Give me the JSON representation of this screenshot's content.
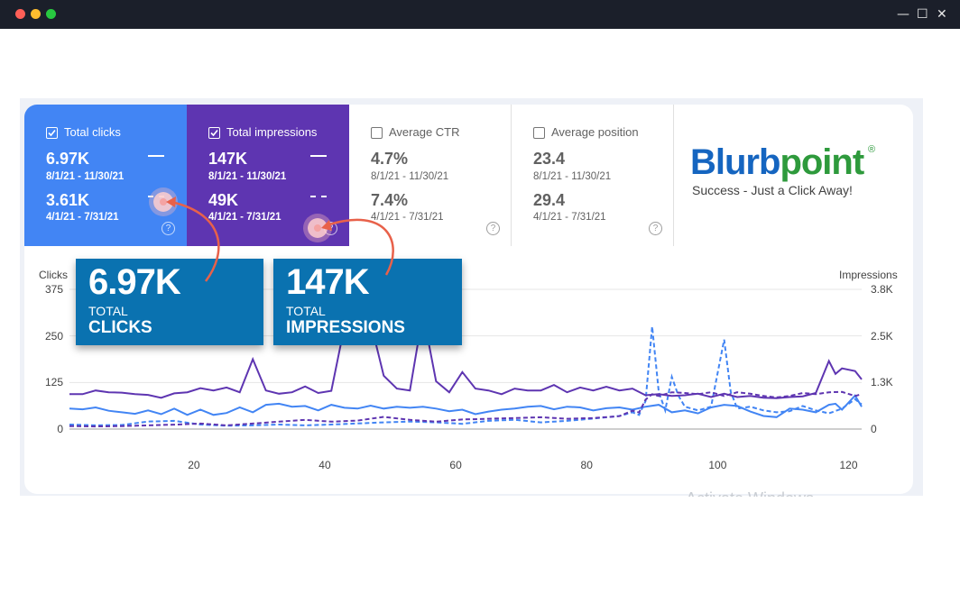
{
  "window": {
    "controls": {
      "minimize": "—",
      "maximize": "☐",
      "close": "✕"
    },
    "dot_colors": [
      "#ff5f57",
      "#febc2e",
      "#28c840"
    ]
  },
  "metrics": [
    {
      "label": "Total clicks",
      "checked": true,
      "value1": "6.97K",
      "date1": "8/1/21 - 11/30/21",
      "value2": "3.61K",
      "date2": "4/1/21 - 7/31/21",
      "help": "?"
    },
    {
      "label": "Total impressions",
      "checked": true,
      "value1": "147K",
      "date1": "8/1/21 - 11/30/21",
      "value2": "49K",
      "date2": "4/1/21 - 7/31/21",
      "help": "?"
    },
    {
      "label": "Average CTR",
      "checked": false,
      "value1": "4.7%",
      "date1": "8/1/21 - 11/30/21",
      "value2": "7.4%",
      "date2": "4/1/21 - 7/31/21",
      "help": "?"
    },
    {
      "label": "Average position",
      "checked": false,
      "value1": "23.4",
      "date1": "8/1/21 - 11/30/21",
      "value2": "29.4",
      "date2": "4/1/21 - 7/31/21",
      "help": "?"
    }
  ],
  "logo": {
    "part1": "Blurb",
    "part2": "point",
    "reg": "®",
    "tagline": "Success - Just a Click Away!"
  },
  "callouts": [
    {
      "big": "6.97K",
      "line1": "TOTAL",
      "line2": "CLICKS"
    },
    {
      "big": "147K",
      "line1": "TOTAL",
      "line2": "IMPRESSIONS"
    }
  ],
  "watermark": "Activate Windows",
  "colors": {
    "clicks": "#4285f4",
    "impressions": "#5e35b1",
    "callout": "#0a72b0",
    "arrow": "#e8614a"
  },
  "chart_data": {
    "type": "line",
    "left_axis_label": "Clicks",
    "right_axis_label": "Impressions",
    "y_left_ticks": [
      "375",
      "250",
      "125",
      "0"
    ],
    "y_left_range": [
      0,
      375
    ],
    "y_right_ticks": [
      "3.8K",
      "2.5K",
      "1.3K",
      "0"
    ],
    "y_right_range": [
      0,
      3800
    ],
    "x_ticks": [
      20,
      40,
      60,
      80,
      100,
      120
    ],
    "x_range": [
      1,
      122
    ],
    "grid": true,
    "series": [
      {
        "axis": "left",
        "style": "solid",
        "color": "#4285f4",
        "period": "8/1/21 - 11/30/21",
        "points": [
          [
            1,
            55
          ],
          [
            3,
            53
          ],
          [
            5,
            58
          ],
          [
            7,
            49
          ],
          [
            9,
            45
          ],
          [
            11,
            41
          ],
          [
            13,
            50
          ],
          [
            15,
            40
          ],
          [
            17,
            55
          ],
          [
            19,
            38
          ],
          [
            21,
            52
          ],
          [
            23,
            38
          ],
          [
            25,
            43
          ],
          [
            27,
            58
          ],
          [
            29,
            45
          ],
          [
            31,
            65
          ],
          [
            33,
            68
          ],
          [
            35,
            60
          ],
          [
            37,
            62
          ],
          [
            39,
            50
          ],
          [
            41,
            65
          ],
          [
            43,
            57
          ],
          [
            45,
            55
          ],
          [
            47,
            63
          ],
          [
            49,
            55
          ],
          [
            51,
            60
          ],
          [
            53,
            57
          ],
          [
            55,
            60
          ],
          [
            57,
            55
          ],
          [
            59,
            48
          ],
          [
            61,
            52
          ],
          [
            63,
            40
          ],
          [
            65,
            47
          ],
          [
            67,
            52
          ],
          [
            69,
            55
          ],
          [
            71,
            60
          ],
          [
            73,
            62
          ],
          [
            75,
            53
          ],
          [
            77,
            60
          ],
          [
            79,
            58
          ],
          [
            81,
            50
          ],
          [
            83,
            56
          ],
          [
            85,
            58
          ],
          [
            87,
            52
          ],
          [
            89,
            60
          ],
          [
            91,
            65
          ],
          [
            93,
            45
          ],
          [
            95,
            50
          ],
          [
            97,
            42
          ],
          [
            99,
            58
          ],
          [
            101,
            65
          ],
          [
            103,
            62
          ],
          [
            105,
            47
          ],
          [
            107,
            35
          ],
          [
            109,
            32
          ],
          [
            111,
            55
          ],
          [
            113,
            52
          ],
          [
            115,
            45
          ],
          [
            117,
            65
          ],
          [
            118,
            68
          ],
          [
            119,
            52
          ],
          [
            121,
            90
          ],
          [
            122,
            60
          ]
        ]
      },
      {
        "axis": "left",
        "style": "dashed",
        "color": "#4285f4",
        "period": "4/1/21 - 7/31/21",
        "points": [
          [
            1,
            12
          ],
          [
            5,
            10
          ],
          [
            9,
            11
          ],
          [
            13,
            20
          ],
          [
            17,
            22
          ],
          [
            21,
            12
          ],
          [
            25,
            9
          ],
          [
            29,
            10
          ],
          [
            33,
            12
          ],
          [
            37,
            10
          ],
          [
            41,
            12
          ],
          [
            45,
            15
          ],
          [
            49,
            18
          ],
          [
            53,
            20
          ],
          [
            57,
            18
          ],
          [
            61,
            14
          ],
          [
            65,
            22
          ],
          [
            69,
            25
          ],
          [
            73,
            18
          ],
          [
            77,
            22
          ],
          [
            81,
            28
          ],
          [
            85,
            35
          ],
          [
            87,
            45
          ],
          [
            88,
            38
          ],
          [
            89,
            75
          ],
          [
            90,
            275
          ],
          [
            91,
            100
          ],
          [
            92,
            50
          ],
          [
            93,
            140
          ],
          [
            94,
            90
          ],
          [
            95,
            60
          ],
          [
            97,
            50
          ],
          [
            99,
            60
          ],
          [
            101,
            240
          ],
          [
            102,
            100
          ],
          [
            103,
            55
          ],
          [
            105,
            60
          ],
          [
            107,
            50
          ],
          [
            109,
            45
          ],
          [
            111,
            48
          ],
          [
            113,
            62
          ],
          [
            115,
            50
          ],
          [
            117,
            42
          ],
          [
            119,
            55
          ],
          [
            121,
            80
          ],
          [
            122,
            66
          ]
        ]
      },
      {
        "axis": "right",
        "style": "solid",
        "color": "#5e35b1",
        "period": "8/1/21 - 11/30/21",
        "points": [
          [
            1,
            950
          ],
          [
            3,
            950
          ],
          [
            5,
            1050
          ],
          [
            7,
            1000
          ],
          [
            9,
            990
          ],
          [
            11,
            950
          ],
          [
            13,
            930
          ],
          [
            15,
            850
          ],
          [
            17,
            970
          ],
          [
            19,
            1000
          ],
          [
            21,
            1110
          ],
          [
            23,
            1050
          ],
          [
            25,
            1130
          ],
          [
            27,
            1000
          ],
          [
            29,
            1900
          ],
          [
            31,
            1050
          ],
          [
            33,
            960
          ],
          [
            35,
            1000
          ],
          [
            37,
            1160
          ],
          [
            39,
            980
          ],
          [
            41,
            1040
          ],
          [
            43,
            2800
          ],
          [
            45,
            3850
          ],
          [
            47,
            2900
          ],
          [
            49,
            1450
          ],
          [
            51,
            1100
          ],
          [
            53,
            1050
          ],
          [
            55,
            3150
          ],
          [
            57,
            1300
          ],
          [
            59,
            1000
          ],
          [
            61,
            1550
          ],
          [
            63,
            1100
          ],
          [
            65,
            1050
          ],
          [
            67,
            950
          ],
          [
            69,
            1100
          ],
          [
            71,
            1050
          ],
          [
            73,
            1050
          ],
          [
            75,
            1200
          ],
          [
            77,
            1000
          ],
          [
            79,
            1130
          ],
          [
            81,
            1050
          ],
          [
            83,
            1150
          ],
          [
            85,
            1050
          ],
          [
            87,
            1100
          ],
          [
            89,
            920
          ],
          [
            91,
            950
          ],
          [
            93,
            900
          ],
          [
            95,
            920
          ],
          [
            97,
            960
          ],
          [
            99,
            870
          ],
          [
            101,
            960
          ],
          [
            103,
            870
          ],
          [
            105,
            900
          ],
          [
            107,
            850
          ],
          [
            109,
            840
          ],
          [
            111,
            870
          ],
          [
            113,
            890
          ],
          [
            115,
            980
          ],
          [
            117,
            1850
          ],
          [
            118,
            1500
          ],
          [
            119,
            1650
          ],
          [
            121,
            1580
          ],
          [
            122,
            1350
          ]
        ]
      },
      {
        "axis": "right",
        "style": "dashed",
        "color": "#5e35b1",
        "period": "4/1/21 - 7/31/21",
        "points": [
          [
            1,
            80
          ],
          [
            5,
            70
          ],
          [
            9,
            80
          ],
          [
            13,
            100
          ],
          [
            17,
            120
          ],
          [
            21,
            150
          ],
          [
            25,
            100
          ],
          [
            29,
            150
          ],
          [
            33,
            200
          ],
          [
            37,
            250
          ],
          [
            41,
            200
          ],
          [
            45,
            230
          ],
          [
            49,
            330
          ],
          [
            53,
            250
          ],
          [
            57,
            200
          ],
          [
            61,
            260
          ],
          [
            65,
            280
          ],
          [
            69,
            300
          ],
          [
            73,
            320
          ],
          [
            77,
            280
          ],
          [
            81,
            300
          ],
          [
            85,
            350
          ],
          [
            87,
            500
          ],
          [
            88,
            450
          ],
          [
            89,
            800
          ],
          [
            90,
            950
          ],
          [
            91,
            900
          ],
          [
            93,
            1000
          ],
          [
            95,
            980
          ],
          [
            97,
            950
          ],
          [
            99,
            1000
          ],
          [
            101,
            900
          ],
          [
            103,
            1000
          ],
          [
            105,
            960
          ],
          [
            107,
            900
          ],
          [
            109,
            860
          ],
          [
            111,
            900
          ],
          [
            113,
            980
          ],
          [
            115,
            950
          ],
          [
            117,
            1000
          ],
          [
            119,
            1010
          ],
          [
            121,
            900
          ],
          [
            122,
            950
          ]
        ]
      }
    ]
  }
}
